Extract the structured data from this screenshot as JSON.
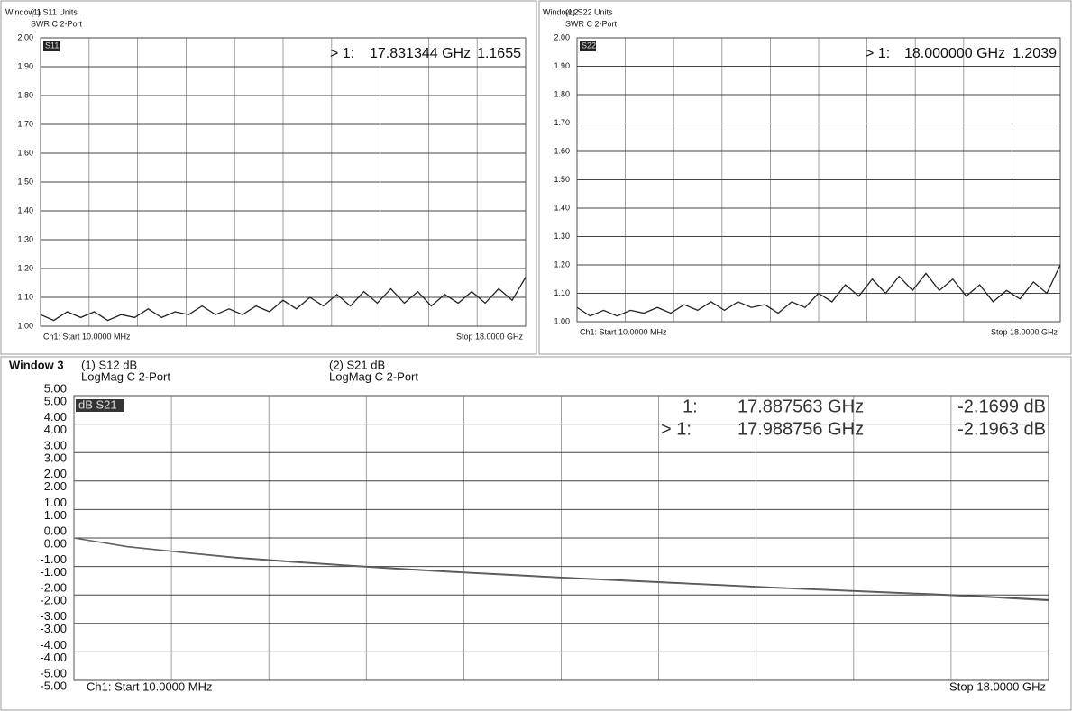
{
  "chart_data": [
    {
      "type": "line",
      "window": "Window 1",
      "trace_title": "(1) S11 Units",
      "format": "SWR C 2-Port",
      "start": "Ch1: Start 10.0000 MHz",
      "stop": "Stop 18.0000 GHz",
      "marker": {
        "prefix": "> 1:",
        "frequency": "17.831344 GHz",
        "value": "1.1655"
      },
      "xlim": [
        0.01,
        18
      ],
      "ylim": [
        1,
        2
      ],
      "grid": true,
      "yticks": [
        {
          "value": 1,
          "label": "1.00"
        },
        {
          "value": 1.1,
          "label": "1.10"
        },
        {
          "value": 1.2,
          "label": "1.20"
        },
        {
          "value": 1.3,
          "label": "1.30"
        },
        {
          "value": 1.4,
          "label": "1.40"
        },
        {
          "value": 1.5,
          "label": "1.50"
        },
        {
          "value": 1.6,
          "label": "1.60"
        },
        {
          "value": 1.7,
          "label": "1.70"
        },
        {
          "value": 1.8,
          "label": "1.80"
        },
        {
          "value": 1.9,
          "label": "1.90"
        },
        {
          "value": 2,
          "label": "2.00"
        }
      ],
      "x": [
        0.01,
        0.5,
        1,
        1.5,
        2,
        2.5,
        3,
        3.5,
        4,
        4.5,
        5,
        5.5,
        6,
        6.5,
        7,
        7.5,
        8,
        8.5,
        9,
        9.5,
        10,
        10.5,
        11,
        11.5,
        12,
        12.5,
        13,
        13.5,
        14,
        14.5,
        15,
        15.5,
        16,
        16.5,
        17,
        17.5,
        18
      ],
      "series": [
        {
          "name": "S11",
          "color": "#222222",
          "values": [
            1.04,
            1.02,
            1.05,
            1.03,
            1.05,
            1.02,
            1.04,
            1.03,
            1.06,
            1.03,
            1.05,
            1.04,
            1.07,
            1.04,
            1.06,
            1.04,
            1.07,
            1.05,
            1.09,
            1.06,
            1.1,
            1.07,
            1.11,
            1.07,
            1.12,
            1.08,
            1.13,
            1.08,
            1.12,
            1.07,
            1.11,
            1.08,
            1.12,
            1.08,
            1.13,
            1.09,
            1.17
          ]
        }
      ]
    },
    {
      "type": "line",
      "window": "Window 2",
      "trace_title": "(1) S22 Units",
      "format": "SWR C 2-Port",
      "start": "Ch1: Start 10.0000 MHz",
      "stop": "Stop 18.0000 GHz",
      "marker": {
        "prefix": "> 1:",
        "frequency": "18.000000 GHz",
        "value": "1.2039"
      },
      "xlim": [
        0.01,
        18
      ],
      "ylim": [
        1,
        2
      ],
      "grid": true,
      "yticks": [
        {
          "value": 1,
          "label": "1.00"
        },
        {
          "value": 1.1,
          "label": "1.10"
        },
        {
          "value": 1.2,
          "label": "1.20"
        },
        {
          "value": 1.3,
          "label": "1.30"
        },
        {
          "value": 1.4,
          "label": "1.40"
        },
        {
          "value": 1.5,
          "label": "1.50"
        },
        {
          "value": 1.6,
          "label": "1.60"
        },
        {
          "value": 1.7,
          "label": "1.70"
        },
        {
          "value": 1.8,
          "label": "1.80"
        },
        {
          "value": 1.9,
          "label": "1.90"
        },
        {
          "value": 2,
          "label": "2.00"
        }
      ],
      "x": [
        0.01,
        0.5,
        1,
        1.5,
        2,
        2.5,
        3,
        3.5,
        4,
        4.5,
        5,
        5.5,
        6,
        6.5,
        7,
        7.5,
        8,
        8.5,
        9,
        9.5,
        10,
        10.5,
        11,
        11.5,
        12,
        12.5,
        13,
        13.5,
        14,
        14.5,
        15,
        15.5,
        16,
        16.5,
        17,
        17.5,
        18
      ],
      "series": [
        {
          "name": "S22",
          "color": "#222222",
          "values": [
            1.05,
            1.02,
            1.04,
            1.02,
            1.04,
            1.03,
            1.05,
            1.03,
            1.06,
            1.04,
            1.07,
            1.04,
            1.07,
            1.05,
            1.06,
            1.03,
            1.07,
            1.05,
            1.1,
            1.07,
            1.13,
            1.09,
            1.15,
            1.1,
            1.16,
            1.11,
            1.17,
            1.11,
            1.15,
            1.09,
            1.13,
            1.07,
            1.11,
            1.08,
            1.14,
            1.1,
            1.2
          ]
        }
      ]
    },
    {
      "type": "line",
      "window": "Window 3",
      "trace_tag": "dB S21",
      "start": "Ch1: Start 10.0000 MHz",
      "stop": "Stop 18.0000 GHz",
      "traces": [
        {
          "title": "(1) S12 dB",
          "format": "LogMag C 2-Port"
        },
        {
          "title": "(2) S21 dB",
          "format": "LogMag C 2-Port"
        }
      ],
      "markers": [
        {
          "prefix": "1:",
          "frequency": "17.887563 GHz",
          "value": "-2.1699 dB"
        },
        {
          "prefix": "> 1:",
          "frequency": "17.988756 GHz",
          "value": "-2.1963 dB"
        }
      ],
      "xlim": [
        0.01,
        18
      ],
      "ylim": [
        -5,
        5
      ],
      "y2lim": [
        -5,
        5
      ],
      "grid": true,
      "yticks": [
        {
          "value": 5,
          "label": "5.00"
        },
        {
          "value": 4,
          "label": "4.00"
        },
        {
          "value": 3,
          "label": "3.00"
        },
        {
          "value": 2,
          "label": "2.00"
        },
        {
          "value": 1,
          "label": "1.00"
        },
        {
          "value": 0,
          "label": "0.00"
        },
        {
          "value": -1,
          "label": "-1.00"
        },
        {
          "value": -2,
          "label": "-2.00"
        },
        {
          "value": -3,
          "label": "-3.00"
        },
        {
          "value": -4,
          "label": "-4.00"
        },
        {
          "value": -5,
          "label": "-5.00"
        }
      ],
      "y2ticks": [
        {
          "value": 5,
          "label": "5.00"
        },
        {
          "value": 4,
          "label": "4.00"
        },
        {
          "value": 3,
          "label": "3.00"
        },
        {
          "value": 2,
          "label": "2.00"
        },
        {
          "value": 1,
          "label": "1.00"
        },
        {
          "value": 0,
          "label": "0.00"
        },
        {
          "value": -1,
          "label": "-1.00"
        },
        {
          "value": -2,
          "label": "-2.00"
        },
        {
          "value": -3,
          "label": "-3.00"
        },
        {
          "value": -4,
          "label": "-4.00"
        },
        {
          "value": -5,
          "label": "-5.00"
        }
      ],
      "x": [
        0.01,
        1,
        2,
        3,
        4,
        5,
        6,
        7,
        8,
        9,
        10,
        11,
        12,
        13,
        14,
        15,
        16,
        17,
        18
      ],
      "series": [
        {
          "color": "#444444",
          "values": [
            0,
            -0.3,
            -0.5,
            -0.68,
            -0.82,
            -0.95,
            -1.07,
            -1.18,
            -1.28,
            -1.38,
            -1.47,
            -1.56,
            -1.65,
            -1.74,
            -1.82,
            -1.9,
            -1.98,
            -2.07,
            -2.17
          ]
        },
        {
          "color": "#666666",
          "axis": "y2",
          "values": [
            0,
            -0.31,
            -0.51,
            -0.7,
            -0.84,
            -0.97,
            -1.09,
            -1.2,
            -1.3,
            -1.4,
            -1.49,
            -1.58,
            -1.67,
            -1.76,
            -1.84,
            -1.92,
            -2,
            -2.09,
            -2.2
          ]
        }
      ]
    }
  ]
}
